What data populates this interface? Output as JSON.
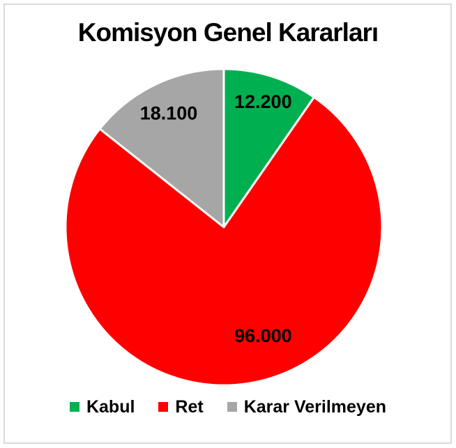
{
  "chart_data": {
    "type": "pie",
    "title": "Komisyon Genel Kararları",
    "slices": [
      {
        "label": "Kabul",
        "value": 12200,
        "display": "12.200",
        "color": "#00B050"
      },
      {
        "label": "Ret",
        "value": 96000,
        "display": "96.000",
        "color": "#FF0000"
      },
      {
        "label": "Karar Verilmeyen",
        "value": 18100,
        "display": "18.100",
        "color": "#A6A6A6"
      }
    ],
    "start_angle_deg": 0,
    "direction": "clockwise",
    "legend_position": "bottom",
    "separator_color": "#FFFFFF",
    "label_color": "#000000",
    "title_color": "#000000",
    "frame_border_color": "#D9D9D9",
    "background_color": "#FFFFFF"
  }
}
